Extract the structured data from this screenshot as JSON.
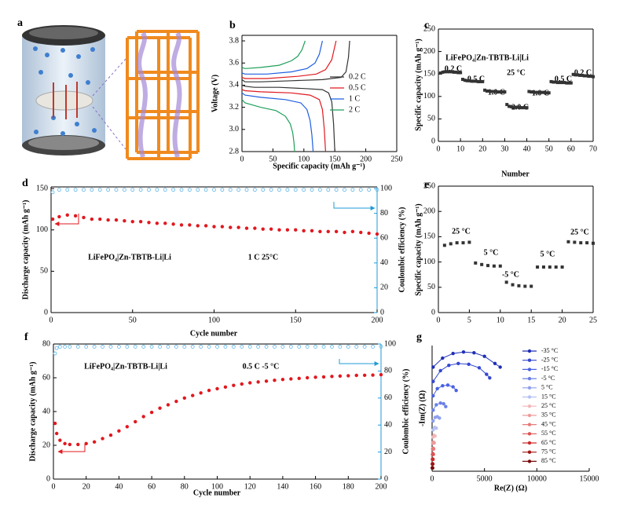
{
  "illustration": {
    "label": "a"
  },
  "chart_data": [
    {
      "type": "line",
      "label": "b",
      "xlabel": "Specific capacity (mAh g⁻¹)",
      "ylabel": "Voltage (V)",
      "xlim": [
        0,
        250
      ],
      "xticks": [
        0,
        50,
        100,
        150,
        200,
        250
      ],
      "ylim": [
        2.8,
        3.85
      ],
      "yticks": [
        2.8,
        {
          "value": 3,
          "label": "3.0"
        },
        3.2,
        3.4,
        3.6,
        3.8
      ],
      "legend": "center right",
      "series": [
        {
          "name": "0.2 C",
          "color": "#333333",
          "charge_x": [
            0,
            5,
            30,
            80,
            130,
            160,
            168,
            172,
            174
          ],
          "charge_values": [
            3.45,
            3.43,
            3.43,
            3.44,
            3.45,
            3.47,
            3.52,
            3.65,
            3.8
          ],
          "discharge_x": [
            0,
            5,
            20,
            60,
            100,
            130,
            140,
            145,
            148,
            150
          ],
          "discharge_values": [
            3.4,
            3.39,
            3.38,
            3.38,
            3.37,
            3.36,
            3.33,
            3.25,
            3.05,
            2.8
          ]
        },
        {
          "name": "0.5 C",
          "color": "#e0191f",
          "charge_x": [
            0,
            5,
            40,
            90,
            120,
            135,
            145,
            152
          ],
          "charge_values": [
            3.47,
            3.46,
            3.46,
            3.48,
            3.5,
            3.54,
            3.63,
            3.8
          ],
          "discharge_x": [
            0,
            5,
            30,
            80,
            110,
            125,
            130,
            133,
            135
          ],
          "discharge_values": [
            3.36,
            3.35,
            3.34,
            3.33,
            3.31,
            3.27,
            3.18,
            3.0,
            2.8
          ]
        },
        {
          "name": "1 C",
          "color": "#1f5fe0",
          "charge_x": [
            0,
            5,
            40,
            80,
            105,
            118,
            125,
            130
          ],
          "charge_values": [
            3.51,
            3.5,
            3.5,
            3.52,
            3.55,
            3.6,
            3.68,
            3.8
          ],
          "discharge_x": [
            0,
            5,
            30,
            70,
            95,
            105,
            110,
            113,
            115
          ],
          "discharge_values": [
            3.33,
            3.31,
            3.29,
            3.27,
            3.24,
            3.18,
            3.08,
            2.95,
            2.8
          ]
        },
        {
          "name": "2 C",
          "color": "#1fa05a",
          "charge_x": [
            0,
            5,
            30,
            60,
            80,
            90,
            97,
            102
          ],
          "charge_values": [
            3.56,
            3.55,
            3.56,
            3.58,
            3.62,
            3.66,
            3.72,
            3.8
          ],
          "discharge_x": [
            0,
            5,
            30,
            55,
            70,
            78,
            82,
            84,
            85
          ],
          "discharge_values": [
            3.27,
            3.24,
            3.2,
            3.17,
            3.12,
            3.05,
            2.97,
            2.88,
            2.8
          ]
        }
      ]
    },
    {
      "type": "scatter",
      "label": "c",
      "xlabel": "Number",
      "ylabel": "Specific capacity (mAh g⁻¹)",
      "xlim": [
        0,
        70
      ],
      "xticks": [
        0,
        10,
        20,
        30,
        40,
        50,
        60,
        70
      ],
      "ylim": [
        0,
        250
      ],
      "yticks": [
        0,
        50,
        100,
        150,
        200,
        250
      ],
      "annotations": [
        "LiFePO₄|Zn-TBTB-Li|Li",
        "25 °C",
        "0.2 C",
        "0.5 C",
        "1.0 C",
        "2.0 C",
        "1.0 C",
        "0.5 C",
        "0.2 C"
      ],
      "x": [
        1,
        2,
        3,
        4,
        5,
        6,
        7,
        8,
        9,
        10,
        11,
        12,
        13,
        14,
        15,
        16,
        17,
        18,
        19,
        20,
        21,
        22,
        23,
        24,
        25,
        26,
        27,
        28,
        29,
        30,
        31,
        32,
        33,
        34,
        35,
        36,
        37,
        38,
        39,
        40,
        41,
        42,
        43,
        44,
        45,
        46,
        47,
        48,
        49,
        50,
        51,
        52,
        53,
        54,
        55,
        56,
        57,
        58,
        59,
        60,
        61,
        62,
        63,
        64,
        65,
        66,
        67,
        68,
        69,
        70
      ],
      "series": [
        {
          "color": "#333333",
          "marker": "square",
          "values": [
            152,
            154,
            155,
            155,
            155,
            155,
            154,
            154,
            153,
            153,
            138,
            136,
            135,
            135,
            134,
            134,
            134,
            133,
            133,
            133,
            114,
            112,
            112,
            111,
            111,
            111,
            110,
            110,
            110,
            110,
            82,
            78,
            77,
            76,
            76,
            76,
            75,
            75,
            75,
            75,
            111,
            110,
            110,
            109,
            109,
            109,
            109,
            109,
            108,
            108,
            133,
            132,
            132,
            131,
            131,
            131,
            131,
            130,
            130,
            130,
            149,
            148,
            148,
            147,
            147,
            146,
            146,
            145,
            145,
            144
          ]
        }
      ]
    },
    {
      "type": "scatter",
      "label": "d",
      "xlabel": "Cycle number",
      "ylabel": "Discharge capacity (mAh g⁻¹)",
      "y2label": "Coulombic efficiency (%)",
      "xlim": [
        0,
        200
      ],
      "xticks": [
        0,
        50,
        100,
        150,
        200
      ],
      "ylim": [
        0,
        152
      ],
      "yticks": [
        0,
        50,
        100,
        150
      ],
      "y2lim": [
        0,
        101.3
      ],
      "y2ticks": [
        0,
        20,
        40,
        60,
        80,
        100
      ],
      "y2_color": "#1f9bd7",
      "annotations": [
        "LiFePO₄|Zn-TBTB-Li|Li",
        "1 C  25°C"
      ],
      "x": [
        1,
        5,
        10,
        15,
        20,
        25,
        30,
        35,
        40,
        45,
        50,
        55,
        60,
        65,
        70,
        75,
        80,
        85,
        90,
        95,
        100,
        105,
        110,
        115,
        120,
        125,
        130,
        135,
        140,
        145,
        150,
        155,
        160,
        165,
        170,
        175,
        180,
        185,
        190,
        195,
        200
      ],
      "series": [
        {
          "color": "#e0191f",
          "marker": "circle",
          "values": [
            113,
            116,
            118,
            117,
            115,
            113,
            113,
            112,
            112,
            111,
            110,
            110,
            109,
            108,
            108,
            107,
            106,
            106,
            105,
            105,
            104,
            104,
            103,
            103,
            102,
            102,
            101,
            101,
            100,
            100,
            100,
            99,
            99,
            98,
            98,
            98,
            97,
            98,
            97,
            96,
            95
          ]
        },
        {
          "color": "#5ab4e5",
          "marker": "open-circle",
          "axis": "y2",
          "values": [
            97,
            99,
            99,
            99,
            99,
            99,
            99,
            99,
            99,
            99,
            99,
            99,
            99,
            99,
            99,
            99,
            99,
            99,
            99,
            99,
            99,
            99,
            99,
            99,
            99,
            99,
            99,
            99,
            99,
            99,
            99,
            99,
            99,
            99,
            99,
            99,
            99,
            99,
            99,
            99,
            99
          ]
        }
      ]
    },
    {
      "type": "scatter",
      "label": "e",
      "ylabel": "Specific capacity (mAh g⁻¹)",
      "xlim": [
        0,
        25
      ],
      "xticks": [
        0,
        5,
        10,
        15,
        20,
        25
      ],
      "ylim": [
        0,
        250
      ],
      "yticks": [
        0,
        50,
        100,
        150,
        200,
        250
      ],
      "annotations": [
        "25 °C",
        "5 °C",
        "-5 °C",
        "5 °C",
        "25 °C"
      ],
      "x": [
        1,
        2,
        3,
        4,
        5,
        6,
        7,
        8,
        9,
        10,
        11,
        12,
        13,
        14,
        15,
        16,
        17,
        18,
        19,
        20,
        21,
        22,
        23,
        24,
        25
      ],
      "series": [
        {
          "color": "#333333",
          "marker": "square",
          "values": [
            133,
            136,
            138,
            138,
            139,
            98,
            95,
            93,
            92,
            92,
            60,
            55,
            53,
            52,
            52,
            90,
            90,
            90,
            90,
            90,
            140,
            139,
            138,
            138,
            137
          ]
        }
      ]
    },
    {
      "type": "scatter",
      "label": "f",
      "xlabel": "Cycle number",
      "ylabel": "Discharge capacity (mAh g⁻¹)",
      "y2label": "Coulombic efficiency (%)",
      "xlim": [
        0,
        200
      ],
      "xticks": [
        0,
        20,
        40,
        60,
        80,
        100,
        120,
        140,
        160,
        180,
        200
      ],
      "ylim": [
        0,
        80
      ],
      "yticks": [
        0,
        20,
        40,
        60,
        80
      ],
      "y2lim": [
        0,
        100
      ],
      "y2ticks": [
        0,
        20,
        40,
        60,
        80,
        100
      ],
      "y2_color": "#1f9bd7",
      "annotations": [
        "LiFePO₄|Zn-TBTB-Li|Li",
        "0.5 C  -5 °C"
      ],
      "x": [
        1,
        2,
        4,
        7,
        10,
        15,
        20,
        25,
        30,
        35,
        40,
        45,
        50,
        55,
        60,
        65,
        70,
        75,
        80,
        85,
        90,
        95,
        100,
        105,
        110,
        115,
        120,
        125,
        130,
        135,
        140,
        145,
        150,
        155,
        160,
        165,
        170,
        175,
        180,
        185,
        190,
        195,
        200
      ],
      "series": [
        {
          "color": "#e0191f",
          "marker": "circle",
          "values": [
            33,
            27,
            23,
            21,
            20.5,
            20.5,
            21,
            22,
            24,
            26,
            28.5,
            31,
            34,
            37,
            39.5,
            42,
            44,
            46,
            48,
            49.5,
            51,
            52.5,
            53.5,
            54.5,
            55.5,
            56.3,
            57,
            57.5,
            58,
            58.5,
            59,
            59.3,
            59.6,
            60,
            60.3,
            60.5,
            60.8,
            61,
            61.2,
            61.4,
            61.5,
            61.6,
            61.8
          ]
        },
        {
          "color": "#5ab4e5",
          "marker": "open-circle",
          "axis": "y2",
          "values": [
            93,
            97,
            98,
            98,
            98,
            98,
            98,
            98,
            98,
            98,
            98,
            98,
            98,
            98,
            98,
            98,
            98,
            98,
            98,
            98,
            98,
            98,
            98,
            98,
            98,
            98,
            98,
            98,
            98,
            98,
            98,
            98,
            98,
            98,
            98,
            98,
            98,
            98,
            98,
            98,
            98,
            98,
            98
          ]
        }
      ]
    },
    {
      "type": "scatter",
      "label": "g",
      "xlabel": "Re(Z) (Ω)",
      "ylabel": "-Im(Z) (Ω)",
      "xlim": [
        0,
        15000
      ],
      "xticks": [
        0,
        5000,
        10000,
        15000
      ],
      "ylim": [
        0,
        3500
      ],
      "legend": "upper right",
      "series": [
        {
          "name": "-35 °C",
          "color": "#1f2fb5",
          "marker": "circle",
          "connect": true,
          "x": [
            100,
            1000,
            2000,
            3000,
            4000,
            5000,
            6000,
            6500
          ],
          "values": [
            2900,
            3150,
            3280,
            3320,
            3300,
            3200,
            3000,
            2900
          ]
        },
        {
          "name": "-25 °C",
          "color": "#3347d0",
          "marker": "circle",
          "connect": true,
          "x": [
            100,
            800,
            1600,
            2500,
            3500,
            4500,
            5200,
            5500
          ],
          "values": [
            2500,
            2800,
            2950,
            3000,
            2980,
            2880,
            2700,
            2600
          ]
        },
        {
          "name": "-15 °C",
          "color": "#4a62e0",
          "marker": "circle",
          "connect": true,
          "x": [
            100,
            500,
            1000,
            1500,
            2000,
            2300
          ],
          "values": [
            2100,
            2300,
            2380,
            2400,
            2350,
            2250
          ]
        },
        {
          "name": "-5 °C",
          "color": "#6a80e8",
          "marker": "circle",
          "connect": true,
          "x": [
            100,
            400,
            800,
            1100,
            1300
          ],
          "values": [
            1700,
            1850,
            1900,
            1880,
            1800
          ]
        },
        {
          "name": "5 °C",
          "color": "#8fa0ef",
          "marker": "circle",
          "connect": true,
          "x": [
            100,
            300,
            500,
            700
          ],
          "values": [
            1400,
            1500,
            1520,
            1480
          ]
        },
        {
          "name": "15 °C",
          "color": "#b5c1f3",
          "marker": "circle",
          "connect": true,
          "x": [
            100,
            250,
            400
          ],
          "values": [
            1150,
            1220,
            1200
          ]
        },
        {
          "name": "25 °C",
          "color": "#f2b8b8",
          "marker": "circle",
          "connect": true,
          "x": [
            80,
            180,
            280
          ],
          "values": [
            950,
            1000,
            980
          ]
        },
        {
          "name": "35 °C",
          "color": "#ee9b9b",
          "marker": "circle",
          "connect": true,
          "x": [
            60,
            130,
            200
          ],
          "values": [
            780,
            810,
            790
          ]
        },
        {
          "name": "45 °C",
          "color": "#e77a7a",
          "marker": "circle",
          "connect": true,
          "x": [
            50,
            100,
            150
          ],
          "values": [
            620,
            640,
            620
          ]
        },
        {
          "name": "55 °C",
          "color": "#de5252",
          "marker": "circle",
          "connect": true,
          "x": [
            40,
            80,
            120
          ],
          "values": [
            470,
            490,
            470
          ]
        },
        {
          "name": "65 °C",
          "color": "#cc2a2a",
          "marker": "circle",
          "connect": true,
          "x": [
            30,
            60,
            90
          ],
          "values": [
            330,
            340,
            330
          ]
        },
        {
          "name": "75 °C",
          "color": "#a01515",
          "marker": "circle",
          "connect": true,
          "x": [
            20,
            45,
            70
          ],
          "values": [
            200,
            210,
            200
          ]
        },
        {
          "name": "85 °C",
          "color": "#7a0b0b",
          "marker": "circle",
          "connect": true,
          "x": [
            15,
            35,
            55
          ],
          "values": [
            90,
            100,
            90
          ]
        }
      ]
    }
  ]
}
